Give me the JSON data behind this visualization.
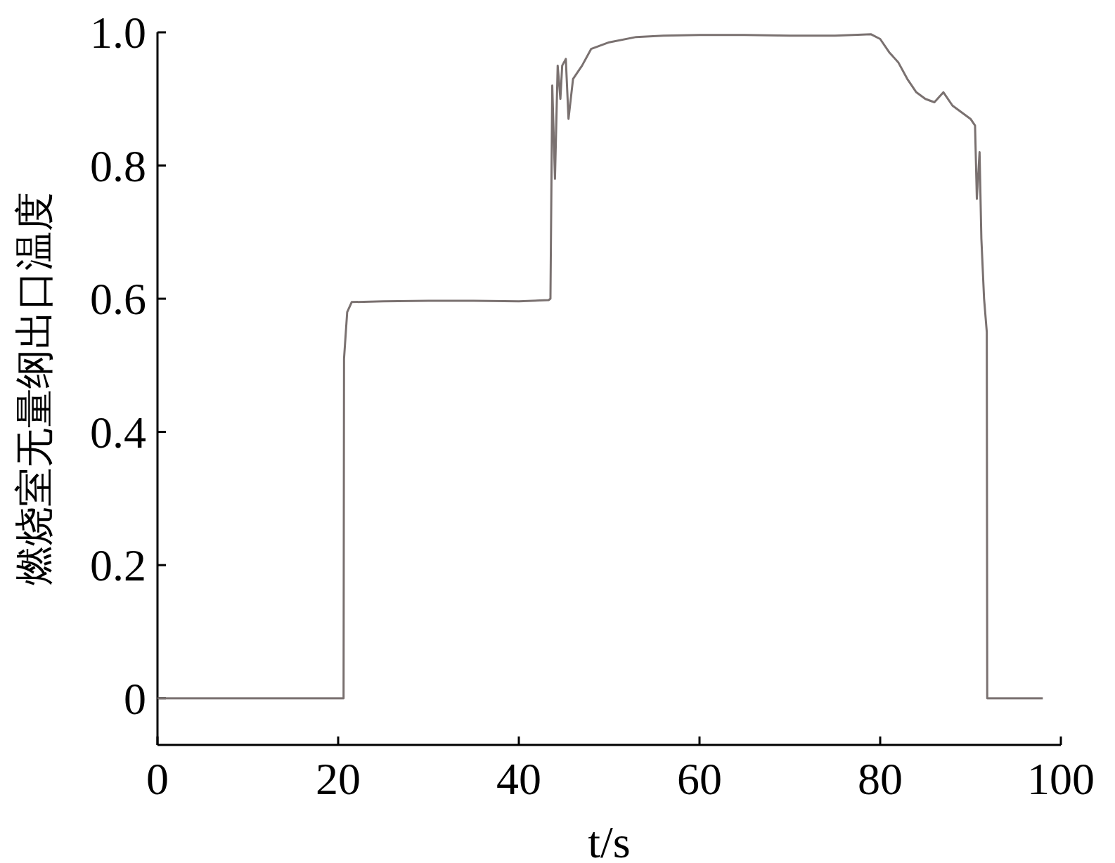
{
  "chart_data": {
    "type": "line",
    "xlabel": "t/s",
    "ylabel": "燃烧室无量纲出口温度",
    "xlim": [
      0,
      100
    ],
    "ylim": [
      -0.07,
      1.0
    ],
    "xticks": [
      0,
      20,
      40,
      60,
      80,
      100
    ],
    "yticks": [
      0,
      0.2,
      0.4,
      0.6,
      0.8,
      {
        "value": 1,
        "label": "1.0"
      }
    ],
    "grid": false,
    "series": [
      {
        "color": "#7a7170",
        "x": [
          0,
          10,
          20.6,
          20.65,
          21.0,
          21.5,
          25,
          30,
          35,
          40,
          43.3,
          43.5,
          43.7,
          44.0,
          44.3,
          44.6,
          44.8,
          45.2,
          45.5,
          46,
          47,
          48,
          50,
          53,
          56,
          60,
          65,
          70,
          75,
          79,
          80,
          81,
          82,
          83,
          84,
          85,
          86,
          87,
          88,
          89,
          90,
          90.5,
          90.7,
          91.0,
          91.2,
          91.5,
          91.8,
          91.85,
          98
        ],
        "values": [
          0,
          0,
          0,
          0.51,
          0.58,
          0.595,
          0.596,
          0.597,
          0.597,
          0.596,
          0.598,
          0.6,
          0.92,
          0.78,
          0.95,
          0.9,
          0.95,
          0.96,
          0.87,
          0.93,
          0.95,
          0.975,
          0.985,
          0.993,
          0.995,
          0.996,
          0.996,
          0.995,
          0.995,
          0.997,
          0.99,
          0.97,
          0.955,
          0.93,
          0.91,
          0.9,
          0.895,
          0.91,
          0.89,
          0.88,
          0.87,
          0.86,
          0.75,
          0.82,
          0.69,
          0.6,
          0.55,
          0,
          0
        ]
      }
    ]
  }
}
